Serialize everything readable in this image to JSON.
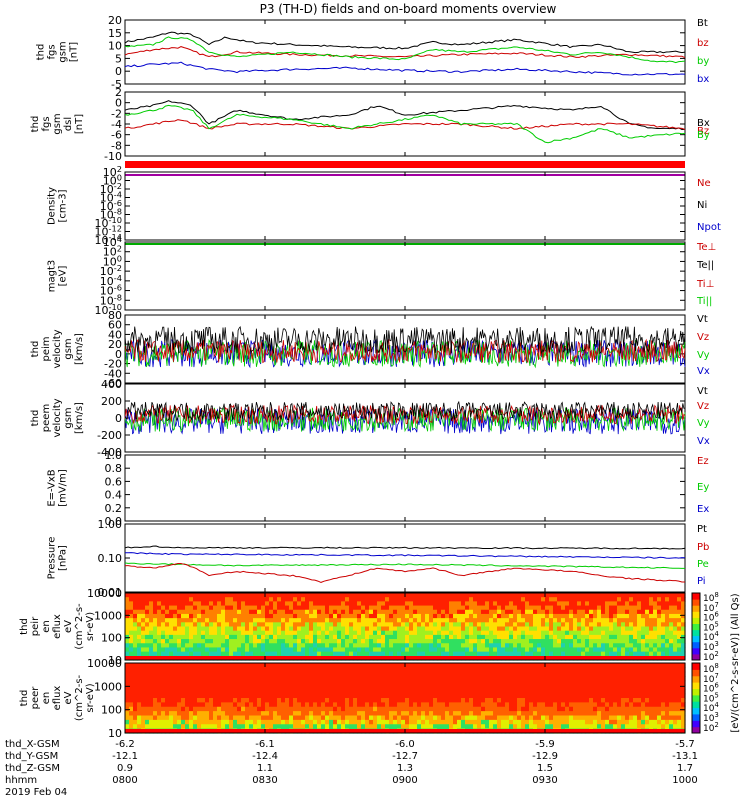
{
  "title": "P3 (TH-D) fields and on-board moments overview",
  "chart_data": [
    {
      "type": "line",
      "ylabel": [
        "thd",
        "fgs",
        "gsm",
        "[nT]"
      ],
      "yticks": [
        "20",
        "15",
        "10",
        "5",
        "0",
        "-5"
      ],
      "ylim": [
        -5,
        21
      ],
      "legend": [
        {
          "name": "Bt",
          "color": "#000000"
        },
        {
          "name": "bz",
          "color": "#cc0000"
        },
        {
          "name": "by",
          "color": "#00cc00"
        },
        {
          "name": "bx",
          "color": "#0000cc"
        }
      ],
      "series": [
        {
          "name": "Bt",
          "color": "#000000",
          "x": [
            0,
            0.05,
            0.08,
            0.12,
            0.15,
            0.18,
            0.22,
            0.3,
            0.4,
            0.5,
            0.55,
            0.6,
            0.7,
            0.8,
            0.85,
            0.9,
            1
          ],
          "y": [
            12,
            14,
            16,
            15,
            11,
            14,
            12,
            11,
            10,
            9.5,
            12,
            11,
            13,
            10,
            11,
            8,
            8
          ]
        },
        {
          "name": "bz",
          "color": "#cc0000",
          "x": [
            0,
            0.05,
            0.1,
            0.15,
            0.2,
            0.3,
            0.4,
            0.5,
            0.6,
            0.7,
            0.8,
            0.9,
            1
          ],
          "y": [
            7,
            9,
            10,
            6,
            8,
            7,
            6.5,
            6,
            7,
            7.5,
            6,
            7,
            6
          ]
        },
        {
          "name": "by",
          "color": "#00cc00",
          "x": [
            0,
            0.05,
            0.08,
            0.12,
            0.15,
            0.2,
            0.3,
            0.4,
            0.5,
            0.55,
            0.6,
            0.7,
            0.8,
            0.85,
            0.9,
            0.95,
            1
          ],
          "y": [
            10,
            11,
            14,
            13,
            8,
            6,
            8,
            6,
            5,
            9,
            8,
            10,
            7,
            8,
            6,
            4,
            4
          ]
        },
        {
          "name": "bx",
          "color": "#0000cc",
          "x": [
            0,
            0.05,
            0.1,
            0.15,
            0.2,
            0.3,
            0.4,
            0.5,
            0.6,
            0.7,
            0.8,
            0.9,
            1
          ],
          "y": [
            2,
            3,
            3.5,
            1,
            0,
            1,
            1.5,
            0.5,
            0,
            1,
            0,
            -1,
            -1
          ]
        }
      ]
    },
    {
      "type": "line",
      "ylabel": [
        "thd",
        "fgs",
        "gsm",
        "dsl",
        "[nT]"
      ],
      "yticks": [
        "2",
        "0",
        "-2",
        "-4",
        "-6",
        "-8",
        "-10"
      ],
      "ylim": [
        -11,
        3
      ],
      "legend": [
        {
          "name": "Bx",
          "color": "#000000"
        },
        {
          "name": "Bz",
          "color": "#cc0000"
        },
        {
          "name": "By",
          "color": "#00cc00"
        }
      ],
      "series": [
        {
          "name": "Bx",
          "color": "#000000",
          "x": [
            0,
            0.05,
            0.08,
            0.12,
            0.15,
            0.2,
            0.3,
            0.4,
            0.45,
            0.5,
            0.6,
            0.7,
            0.8,
            0.85,
            0.9,
            0.95,
            1
          ],
          "y": [
            -1,
            0,
            1,
            0,
            -4,
            -1,
            -3,
            -2,
            0,
            -2,
            -1,
            0,
            -1,
            0,
            -4,
            -5,
            -5
          ]
        },
        {
          "name": "Bz",
          "color": "#cc0000",
          "x": [
            0,
            0.05,
            0.1,
            0.15,
            0.2,
            0.3,
            0.4,
            0.5,
            0.6,
            0.7,
            0.8,
            0.9,
            1
          ],
          "y": [
            -5,
            -4,
            -3,
            -5,
            -4,
            -4,
            -5,
            -4,
            -4,
            -5,
            -4,
            -4,
            -5
          ]
        },
        {
          "name": "By",
          "color": "#00cc00",
          "x": [
            0,
            0.05,
            0.08,
            0.12,
            0.15,
            0.2,
            0.3,
            0.4,
            0.5,
            0.55,
            0.6,
            0.7,
            0.75,
            0.8,
            0.85,
            0.9,
            1
          ],
          "y": [
            -2,
            -1,
            0,
            -1,
            -5,
            -2,
            -3,
            -5,
            -3,
            -2,
            -4,
            -4,
            -8,
            -7,
            -5,
            -7,
            -6
          ]
        }
      ]
    },
    {
      "type": "line",
      "ylabel": [
        "Density",
        "[cm-3]"
      ],
      "yticks": [
        "10^2",
        "10^0",
        "10^-2",
        "10^-4",
        "10^-6",
        "10^-8",
        "10^-10",
        "10^-12",
        "10^-14"
      ],
      "legend": [
        {
          "name": "Ne",
          "color": "#cc0000"
        },
        {
          "name": "Ni",
          "color": "#000000"
        },
        {
          "name": "Npot",
          "color": "#0000cc"
        }
      ]
    },
    {
      "type": "line",
      "ylabel": [
        "magt3",
        "[eV]"
      ],
      "yticks": [
        "10^4",
        "10^2",
        "10^0",
        "10^-2",
        "10^-4",
        "10^-6",
        "10^-8",
        "10^-10"
      ],
      "legend": [
        {
          "name": "Te⊥",
          "color": "#cc0000"
        },
        {
          "name": "Te||",
          "color": "#000000"
        },
        {
          "name": "Ti⊥",
          "color": "#cc0000"
        },
        {
          "name": "Ti||",
          "color": "#00cc00"
        }
      ]
    },
    {
      "type": "line",
      "ylabel": [
        "thd",
        "peim",
        "velocity",
        "gsm",
        "[km/s]"
      ],
      "yticks": [
        "80",
        "60",
        "40",
        "20",
        "0",
        "-20",
        "-40",
        "-60"
      ],
      "ylim": [
        -65,
        85
      ],
      "legend": [
        {
          "name": "Vt",
          "color": "#000000"
        },
        {
          "name": "Vz",
          "color": "#cc0000"
        },
        {
          "name": "Vy",
          "color": "#00cc00"
        },
        {
          "name": "Vx",
          "color": "#0000cc"
        }
      ]
    },
    {
      "type": "line",
      "ylabel": [
        "thd",
        "peem",
        "velocity",
        "gsm",
        "[km/s]"
      ],
      "yticks": [
        "400",
        "200",
        "0",
        "-200",
        "-400"
      ],
      "ylim": [
        -400,
        400
      ],
      "legend": [
        {
          "name": "Vt",
          "color": "#000000"
        },
        {
          "name": "Vz",
          "color": "#cc0000"
        },
        {
          "name": "Vy",
          "color": "#00cc00"
        },
        {
          "name": "Vx",
          "color": "#0000cc"
        }
      ]
    },
    {
      "type": "line",
      "ylabel": [
        "E=-VxB",
        "[mV/m]"
      ],
      "yticks": [
        "1.0",
        "0.8",
        "0.6",
        "0.4",
        "0.2",
        "0.0"
      ],
      "ylim": [
        0,
        1
      ],
      "legend": [
        {
          "name": "Ez",
          "color": "#cc0000"
        },
        {
          "name": "Ey",
          "color": "#00cc00"
        },
        {
          "name": "Ex",
          "color": "#0000cc"
        }
      ]
    },
    {
      "type": "line",
      "ylabel": [
        "Pressure",
        "[nPa]"
      ],
      "yticks": [
        "1.00",
        "0.10",
        "0.01"
      ],
      "legend": [
        {
          "name": "Pt",
          "color": "#000000"
        },
        {
          "name": "Pb",
          "color": "#cc0000"
        },
        {
          "name": "Pe",
          "color": "#00cc00"
        },
        {
          "name": "Pi",
          "color": "#0000cc"
        }
      ],
      "series": [
        {
          "name": "Pt",
          "color": "#000000",
          "x": [
            0,
            0.05,
            0.1,
            0.5,
            1
          ],
          "y": [
            0.2,
            0.22,
            0.2,
            0.2,
            0.19
          ]
        },
        {
          "name": "Pi",
          "color": "#0000cc",
          "x": [
            0,
            0.1,
            0.5,
            1
          ],
          "y": [
            0.14,
            0.13,
            0.12,
            0.1
          ]
        },
        {
          "name": "Pe",
          "color": "#00cc00",
          "x": [
            0,
            0.1,
            0.2,
            0.5,
            1
          ],
          "y": [
            0.07,
            0.065,
            0.06,
            0.065,
            0.05
          ]
        },
        {
          "name": "Pb",
          "color": "#cc0000",
          "x": [
            0,
            0.05,
            0.1,
            0.15,
            0.2,
            0.3,
            0.35,
            0.4,
            0.45,
            0.5,
            0.55,
            0.6,
            0.7,
            0.8,
            0.85,
            0.9,
            1
          ],
          "y": [
            0.06,
            0.05,
            0.07,
            0.03,
            0.04,
            0.03,
            0.02,
            0.03,
            0.05,
            0.04,
            0.05,
            0.03,
            0.05,
            0.04,
            0.03,
            0.025,
            0.02
          ]
        }
      ]
    },
    {
      "type": "heatmap",
      "ylabel": [
        "thd",
        "peir",
        "en",
        "eflux",
        "eV",
        "(cm^2-s-",
        "sr-eV)"
      ],
      "yticks": [
        "10000",
        "1000",
        "100",
        "10"
      ]
    },
    {
      "type": "heatmap",
      "ylabel": [
        "thd",
        "peer",
        "en",
        "eflux",
        "eV",
        "(cm^2-s-",
        "sr-eV)"
      ],
      "yticks": [
        "10000",
        "1000",
        "100",
        "10"
      ]
    }
  ],
  "colorbar": {
    "label": "[eV/(cm^2-s-sr-eV)] (All Qs)",
    "ticks": [
      "10^8",
      "10^7",
      "10^6",
      "10^5",
      "10^4",
      "10^3",
      "10^2",
      "10^8",
      "10^7",
      "10^6",
      "10^5",
      "10^4",
      "10^3",
      "10^2"
    ]
  },
  "time_axis": {
    "rows": [
      {
        "label": "thd_X-GSM",
        "values": [
          "-6.2",
          "-6.1",
          "-6.0",
          "-5.9",
          "-5.7"
        ]
      },
      {
        "label": "thd_Y-GSM",
        "values": [
          "-12.1",
          "-12.4",
          "-12.7",
          "-12.9",
          "-13.1"
        ]
      },
      {
        "label": "thd_Z-GSM",
        "values": [
          "0.9",
          "1.1",
          "1.3",
          "1.5",
          "1.7"
        ]
      },
      {
        "label": "hhmm",
        "values": [
          "0800",
          "0830",
          "0900",
          "0930",
          "1000"
        ]
      }
    ],
    "date": "2019 Feb 04"
  }
}
